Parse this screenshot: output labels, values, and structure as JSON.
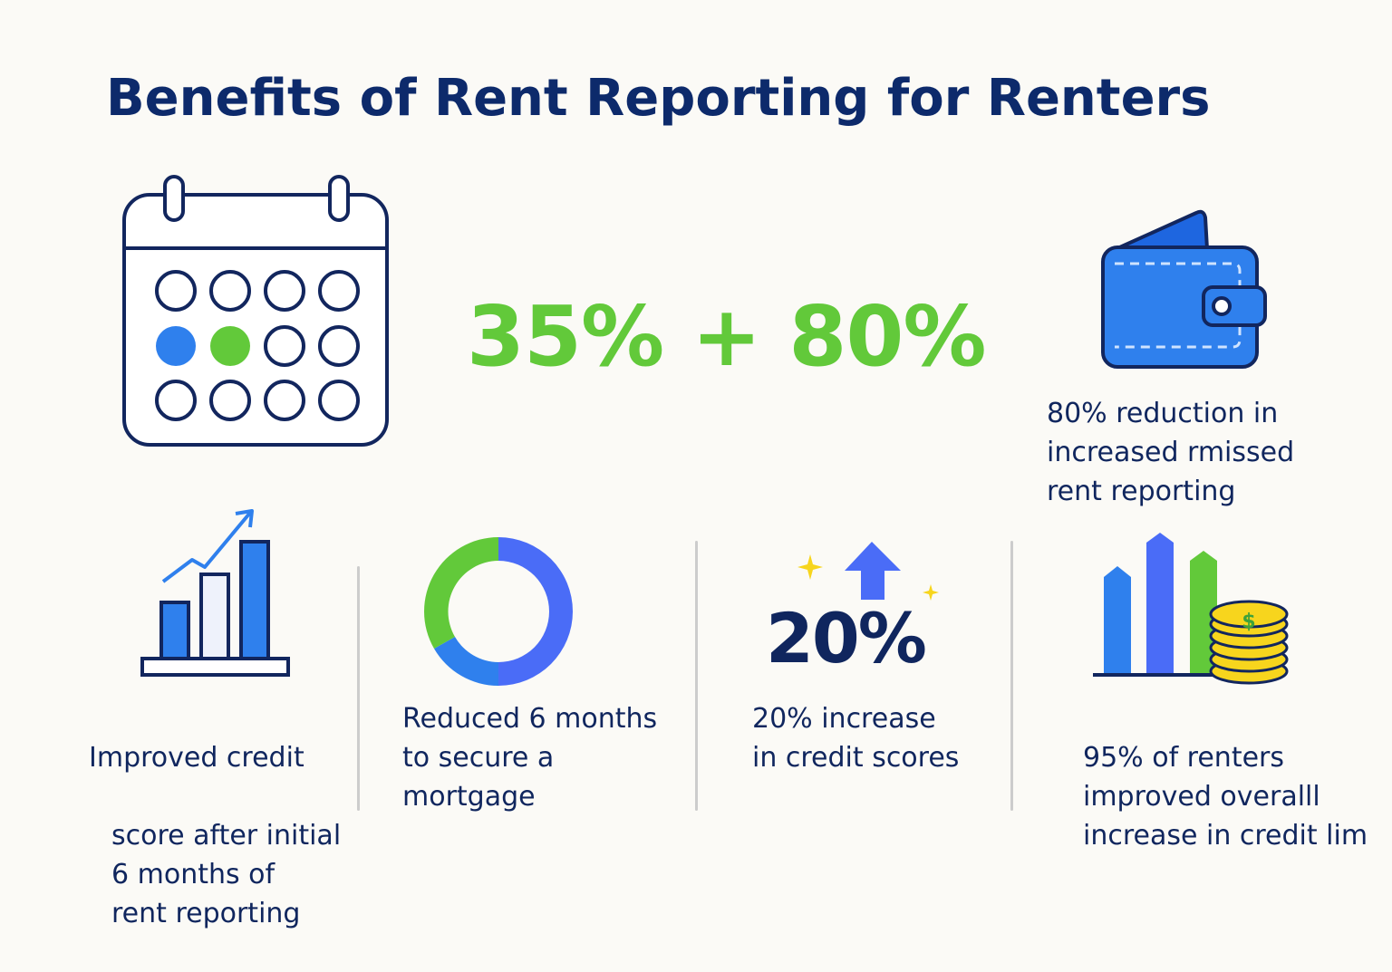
{
  "title": "Benefits of Rent Reporting for Renters",
  "headline": "35% + 80%",
  "wallet_caption": "80% reduction in\nincreased rmissed\nrent reporting",
  "cards": [
    {
      "caption_l1": "Improved credit",
      "caption_rest": "score after initial\n6 months of\nrent reporting"
    },
    {
      "caption": "Reduced 6 months\nto secure a\nmortgage"
    },
    {
      "stat": "20%",
      "caption": "20% increase\nin credit scores"
    },
    {
      "caption": "95% of renters\nimproved overalll\nincrease in credit lim"
    }
  ],
  "coin_symbol": "$",
  "icons": [
    "calendar-icon",
    "wallet-icon",
    "bar-chart-trend-icon",
    "donut-chart-icon",
    "up-arrow-sparkle-icon",
    "bars-coins-icon"
  ],
  "colors": {
    "navy": "#0d2a6b",
    "green": "#62c93a",
    "blue": "#2f80ed",
    "indigo": "#4a6cf7",
    "gold": "#f7d51d"
  }
}
